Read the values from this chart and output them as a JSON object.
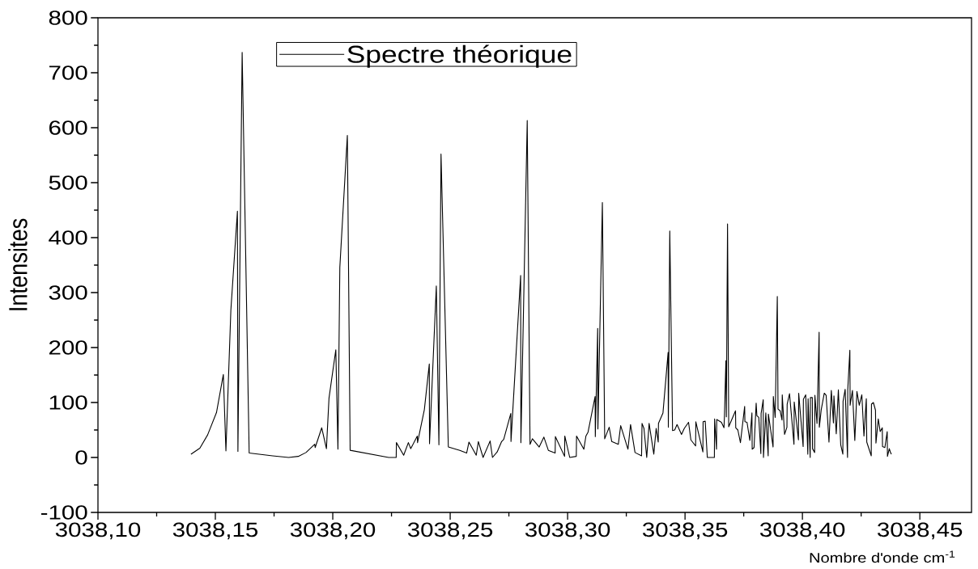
{
  "chart_data": {
    "type": "line",
    "xlabel": "Nombre d'onde cm$^{-1}$",
    "ylabel": "Intensites",
    "x": [
      3038.1396,
      3038.1434,
      3038.1467,
      3038.1505,
      3038.1534,
      3038.1545,
      3038.1566,
      3038.1594,
      3038.1596,
      3038.1614,
      3038.1644,
      3038.1744,
      3038.1812,
      3038.1853,
      3038.1886,
      3038.1923,
      3038.1925,
      3038.1953,
      3038.1973,
      3038.1984,
      3038.2013,
      3038.2022,
      3038.203,
      3038.2062,
      3038.2074,
      3038.2238,
      3038.227,
      3038.2271,
      3038.2302,
      3038.2322,
      3038.2332,
      3038.236,
      3038.2361,
      3038.239,
      3038.2411,
      3038.2412,
      3038.2441,
      3038.2452,
      3038.2461,
      3038.2492,
      3038.2541,
      3038.257,
      3038.258,
      3038.2611,
      3038.262,
      3038.264,
      3038.267,
      3038.268,
      3038.27,
      3038.2719,
      3038.2728,
      3038.2758,
      3038.2759,
      3038.28,
      3038.2801,
      3038.2828,
      3038.284,
      3038.285,
      3038.2879,
      3038.2899,
      3038.2918,
      3038.2947,
      3038.2948,
      3038.2987,
      3038.2988,
      3038.3009,
      3038.3037,
      3038.3038,
      3038.3069,
      3038.3078,
      3038.3087,
      3038.3117,
      3038.3118,
      3038.3128,
      3038.3129,
      3038.3148,
      3038.3158,
      3038.3177,
      3038.3188,
      3038.3216,
      3038.3226,
      3038.3257,
      3038.3268,
      3038.3287,
      3038.3315,
      3038.3317,
      3038.3325,
      3038.3337,
      3038.3347,
      3038.3367,
      3038.3377,
      3038.3386,
      3038.3387,
      3038.3406,
      3038.3428,
      3038.3429,
      3038.3435,
      3038.3447,
      3038.3456,
      3038.3466,
      3038.3485,
      3038.3497,
      3038.3515,
      3038.3525,
      3038.3545,
      3038.3546,
      3038.3576,
      3038.3577,
      3038.3586,
      3038.3595,
      3038.3625,
      3038.3626,
      3038.3634,
      3038.3635,
      3038.3655,
      3038.3666,
      3038.3668,
      3038.3674,
      3038.3676,
      3038.3681,
      3038.3686,
      3038.3715,
      3038.3716,
      3038.3725,
      3038.3736,
      3038.3754,
      3038.3755,
      3038.3764,
      3038.3776,
      3038.3785,
      3038.3786,
      3038.3794,
      3038.3803,
      3038.3806,
      3038.3814,
      3038.3823,
      3038.3824,
      3038.3833,
      3038.3834,
      3038.3844,
      3038.3854,
      3038.3855,
      3038.3875,
      3038.3876,
      3038.3884,
      3038.3893,
      3038.3896,
      3038.3905,
      3038.3913,
      3038.3914,
      3038.3924,
      3038.3934,
      3038.3935,
      3038.3945,
      3038.3964,
      3038.3965,
      3038.3983,
      3038.3984,
      3038.4003,
      3038.4004,
      3038.4014,
      3038.4023,
      3038.4024,
      3038.4033,
      3038.4034,
      3038.4042,
      3038.4043,
      3038.4052,
      3038.4053,
      3038.4062,
      3038.4071,
      3038.4072,
      3038.408,
      3038.4093,
      3038.4101,
      3038.4113,
      3038.4123,
      3038.4132,
      3038.4134,
      3038.4144,
      3038.4153,
      3038.4163,
      3038.4172,
      3038.4173,
      3038.4182,
      3038.4192,
      3038.4193,
      3038.4202,
      3038.4203,
      3038.4213,
      3038.4223,
      3038.4232,
      3038.4242,
      3038.4253,
      3038.4262,
      3038.4272,
      3038.4274,
      3038.4293,
      3038.4294,
      3038.4302,
      3038.4311,
      3038.4313,
      3038.4323,
      3038.4331,
      3038.434,
      3038.4341,
      3038.4351,
      3038.4361,
      3038.4362,
      3038.437,
      3038.4375,
      3038.4379
    ],
    "series": [
      {
        "name": "Spectre théorique",
        "color": "#000000",
        "values": [
          6,
          17,
          41,
          82,
          151,
          12,
          268,
          448,
          11,
          737,
          8,
          3,
          0,
          2,
          9,
          24,
          18,
          54,
          16,
          108,
          196,
          15,
          346,
          586,
          13,
          0,
          0,
          27,
          4,
          27,
          16,
          39,
          27,
          87,
          170,
          25,
          312,
          23,
          552,
          19,
          13,
          8,
          28,
          4,
          29,
          0,
          30,
          0,
          10,
          29,
          33,
          80,
          29,
          331,
          27,
          613,
          24,
          34,
          19,
          37,
          13,
          8,
          38,
          2,
          39,
          0,
          2,
          39,
          15,
          39,
          46,
          111,
          38,
          235,
          52,
          464,
          34,
          55,
          29,
          24,
          58,
          15,
          60,
          9,
          3,
          62,
          53,
          0,
          62,
          6,
          53,
          28,
          62,
          81,
          191,
          55,
          412,
          49,
          50,
          60,
          42,
          53,
          64,
          32,
          21,
          65,
          10,
          65,
          66,
          0,
          0,
          70,
          15,
          69,
          64,
          54,
          77,
          176,
          74,
          425,
          56,
          85,
          54,
          50,
          27,
          93,
          65,
          64,
          31,
          81,
          15,
          18,
          99,
          76,
          73,
          7,
          80,
          105,
          0,
          81,
          3,
          79,
          19,
          111,
          73,
          293,
          88,
          85,
          68,
          114,
          42,
          55,
          97,
          116,
          24,
          101,
          32,
          117,
          20,
          106,
          114,
          6,
          107,
          0,
          109,
          109,
          16,
          9,
          113,
          62,
          228,
          55,
          87,
          117,
          113,
          28,
          122,
          63,
          112,
          43,
          123,
          23,
          6,
          102,
          124,
          0,
          123,
          195,
          95,
          122,
          31,
          120,
          95,
          114,
          39,
          107,
          28,
          3,
          97,
          100,
          86,
          26,
          70,
          47,
          54,
          20,
          18,
          47,
          2,
          16,
          9,
          6
        ]
      }
    ],
    "xlim": [
      3038.1,
      3038.472
    ],
    "ylim": [
      -100,
      800
    ],
    "xticks": [
      {
        "value": 3038.1,
        "label": "3038,10"
      },
      {
        "value": 3038.125,
        "label": null
      },
      {
        "value": 3038.15,
        "label": "3038,15"
      },
      {
        "value": 3038.175,
        "label": null
      },
      {
        "value": 3038.2,
        "label": "3038,20"
      },
      {
        "value": 3038.225,
        "label": null
      },
      {
        "value": 3038.25,
        "label": "3038,25"
      },
      {
        "value": 3038.275,
        "label": null
      },
      {
        "value": 3038.3,
        "label": "3038,30"
      },
      {
        "value": 3038.325,
        "label": null
      },
      {
        "value": 3038.35,
        "label": "3038,35"
      },
      {
        "value": 3038.375,
        "label": null
      },
      {
        "value": 3038.4,
        "label": "3038,40"
      },
      {
        "value": 3038.425,
        "label": null
      },
      {
        "value": 3038.45,
        "label": "3038,45"
      }
    ],
    "yticks": [
      -100,
      {
        "value": -50,
        "label": null
      },
      0,
      {
        "value": 50,
        "label": null
      },
      100,
      {
        "value": 150,
        "label": null
      },
      200,
      {
        "value": 250,
        "label": null
      },
      300,
      {
        "value": 350,
        "label": null
      },
      400,
      {
        "value": 450,
        "label": null
      },
      500,
      {
        "value": 550,
        "label": null
      },
      600,
      {
        "value": 650,
        "label": null
      },
      700,
      {
        "value": 750,
        "label": null
      },
      800
    ],
    "legend": "top left",
    "line_style": "solid"
  }
}
